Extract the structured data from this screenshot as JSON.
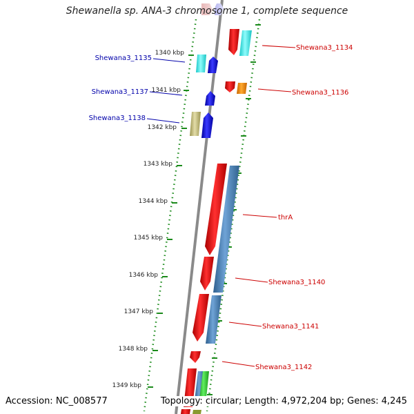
{
  "title": "Shewanella sp. ANA-3 chromosome 1, complete sequence",
  "footer": {
    "accession": "Accession: NC_008577",
    "summary": "Topology: circular; Length: 4,972,204 bp; Genes: 4,245"
  },
  "colors": {
    "backbone": "#8a8a8a",
    "ruler": "#1a8a1a",
    "forward_label": "#0000aa",
    "reverse_label": "#cc0000"
  },
  "ruler_ticks": [
    {
      "label": "1340 kbp"
    },
    {
      "label": "1341 kbp"
    },
    {
      "label": "1342 kbp"
    },
    {
      "label": "1343 kbp"
    },
    {
      "label": "1344 kbp"
    },
    {
      "label": "1345 kbp"
    },
    {
      "label": "1346 kbp"
    },
    {
      "label": "1347 kbp"
    },
    {
      "label": "1348 kbp"
    },
    {
      "label": "1349 kbp"
    }
  ],
  "gene_labels": [
    {
      "name": "Shewana3_1135",
      "strand": "forward"
    },
    {
      "name": "Shewana3_1137",
      "strand": "forward"
    },
    {
      "name": "Shewana3_1138",
      "strand": "forward"
    },
    {
      "name": "Shewana3_1134",
      "strand": "reverse"
    },
    {
      "name": "Shewana3_1136",
      "strand": "reverse"
    },
    {
      "name": "thrA",
      "strand": "reverse"
    },
    {
      "name": "Shewana3_1140",
      "strand": "reverse"
    },
    {
      "name": "Shewana3_1141",
      "strand": "reverse"
    },
    {
      "name": "Shewana3_1142",
      "strand": "reverse"
    }
  ]
}
